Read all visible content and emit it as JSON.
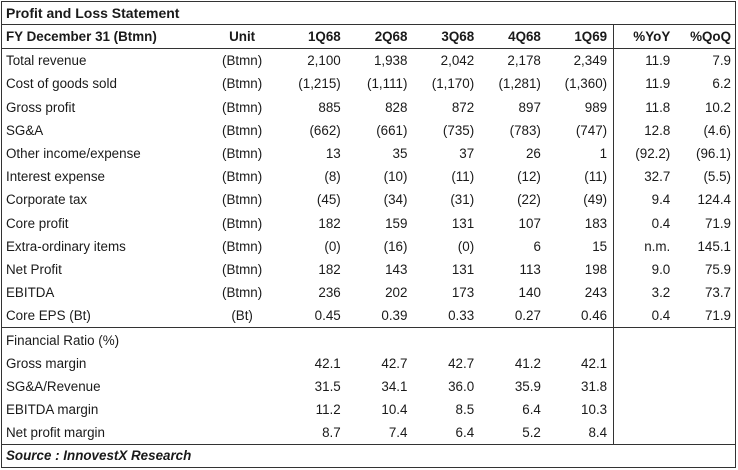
{
  "title": "Profit and Loss Statement",
  "header": {
    "label": "FY December 31 (Btmn)",
    "unit": "Unit",
    "quarters": [
      "1Q68",
      "2Q68",
      "3Q68",
      "4Q68",
      "1Q69"
    ],
    "yoy": "%YoY",
    "qoq": "%QoQ"
  },
  "rows": [
    {
      "label": "Total revenue",
      "unit": "(Btmn)",
      "values": [
        "2,100",
        "1,938",
        "2,042",
        "2,178",
        "2,349"
      ],
      "yoy": "11.9",
      "qoq": "7.9"
    },
    {
      "label": "Cost of goods sold",
      "unit": "(Btmn)",
      "values": [
        "(1,215)",
        "(1,111)",
        "(1,170)",
        "(1,281)",
        "(1,360)"
      ],
      "yoy": "11.9",
      "qoq": "6.2"
    },
    {
      "label": "Gross profit",
      "unit": "(Btmn)",
      "values": [
        "885",
        "828",
        "872",
        "897",
        "989"
      ],
      "yoy": "11.8",
      "qoq": "10.2"
    },
    {
      "label": "SG&A",
      "unit": "(Btmn)",
      "values": [
        "(662)",
        "(661)",
        "(735)",
        "(783)",
        "(747)"
      ],
      "yoy": "12.8",
      "qoq": "(4.6)"
    },
    {
      "label": "Other income/expense",
      "unit": "(Btmn)",
      "values": [
        "13",
        "35",
        "37",
        "26",
        "1"
      ],
      "yoy": "(92.2)",
      "qoq": "(96.1)"
    },
    {
      "label": "Interest expense",
      "unit": "(Btmn)",
      "values": [
        "(8)",
        "(10)",
        "(11)",
        "(12)",
        "(11)"
      ],
      "yoy": "32.7",
      "qoq": "(5.5)"
    },
    {
      "label": "Corporate tax",
      "unit": "(Btmn)",
      "values": [
        "(45)",
        "(34)",
        "(31)",
        "(22)",
        "(49)"
      ],
      "yoy": "9.4",
      "qoq": "124.4"
    },
    {
      "label": "Core profit",
      "unit": "(Btmn)",
      "values": [
        "182",
        "159",
        "131",
        "107",
        "183"
      ],
      "yoy": "0.4",
      "qoq": "71.9"
    },
    {
      "label": "Extra-ordinary items",
      "unit": "(Btmn)",
      "values": [
        "(0)",
        "(16)",
        "(0)",
        "6",
        "15"
      ],
      "yoy": "n.m.",
      "qoq": "145.1"
    },
    {
      "label": "Net Profit",
      "unit": "(Btmn)",
      "values": [
        "182",
        "143",
        "131",
        "113",
        "198"
      ],
      "yoy": "9.0",
      "qoq": "75.9"
    },
    {
      "label": "EBITDA",
      "unit": "(Btmn)",
      "values": [
        "236",
        "202",
        "173",
        "140",
        "243"
      ],
      "yoy": "3.2",
      "qoq": "73.7"
    },
    {
      "label": "Core EPS (Bt)",
      "unit": "(Bt)",
      "values": [
        "0.45",
        "0.39",
        "0.33",
        "0.27",
        "0.46"
      ],
      "yoy": "0.4",
      "qoq": "71.9"
    }
  ],
  "ratio_section": {
    "heading": "Financial Ratio (%)",
    "rows": [
      {
        "label": "Gross margin",
        "values": [
          "42.1",
          "42.7",
          "42.7",
          "41.2",
          "42.1"
        ]
      },
      {
        "label": "SG&A/Revenue",
        "values": [
          "31.5",
          "34.1",
          "36.0",
          "35.9",
          "31.8"
        ]
      },
      {
        "label": "EBITDA margin",
        "values": [
          "11.2",
          "10.4",
          "8.5",
          "6.4",
          "10.3"
        ]
      },
      {
        "label": "Net profit margin",
        "values": [
          "8.7",
          "7.4",
          "6.4",
          "5.2",
          "8.4"
        ]
      }
    ]
  },
  "source": "Source : InnovestX Research"
}
